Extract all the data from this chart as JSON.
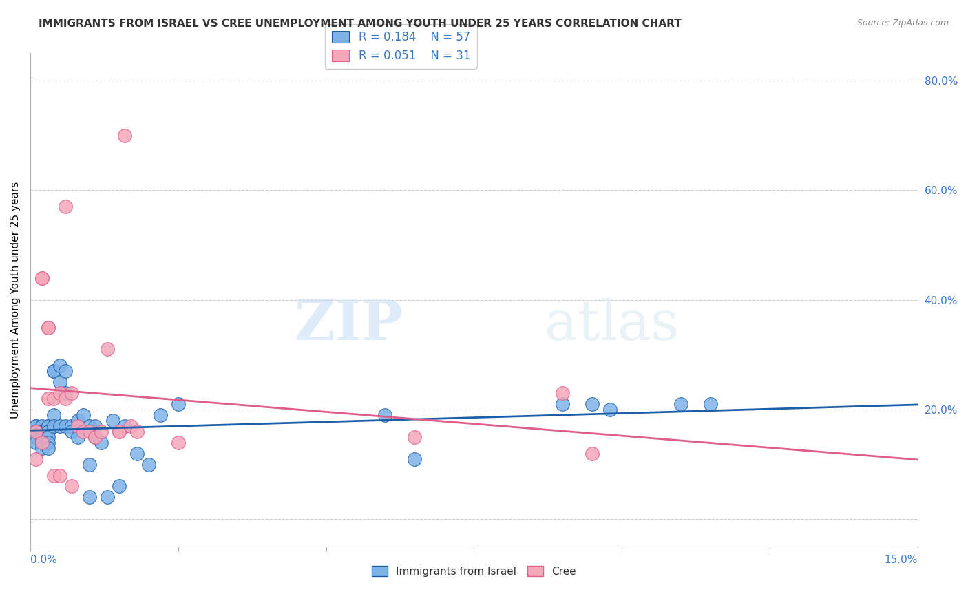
{
  "title": "IMMIGRANTS FROM ISRAEL VS CREE UNEMPLOYMENT AMONG YOUTH UNDER 25 YEARS CORRELATION CHART",
  "source": "Source: ZipAtlas.com",
  "ylabel": "Unemployment Among Youth under 25 years",
  "xlim": [
    0.0,
    0.15
  ],
  "ylim": [
    -0.05,
    0.85
  ],
  "yticks_right": [
    0.0,
    0.2,
    0.4,
    0.6,
    0.8
  ],
  "ytick_right_labels": [
    "",
    "20.0%",
    "40.0%",
    "60.0%",
    "80.0%"
  ],
  "legend_r1": "0.184",
  "legend_n1": "57",
  "legend_r2": "0.051",
  "legend_n2": "31",
  "color_blue": "#7EB3E8",
  "color_pink": "#F4A7B9",
  "color_blue_line": "#1B5FA8",
  "color_pink_line": "#E05C8A",
  "color_blue_text": "#3A78C4",
  "color_grid": "#CCCCCC",
  "watermark_zip": "ZIP",
  "watermark_atlas": "atlas",
  "blue_scatter_x": [
    0.001,
    0.001,
    0.001,
    0.001,
    0.001,
    0.001,
    0.002,
    0.002,
    0.002,
    0.002,
    0.002,
    0.002,
    0.002,
    0.002,
    0.003,
    0.003,
    0.003,
    0.003,
    0.003,
    0.003,
    0.003,
    0.004,
    0.004,
    0.004,
    0.004,
    0.005,
    0.005,
    0.005,
    0.006,
    0.006,
    0.006,
    0.007,
    0.007,
    0.008,
    0.008,
    0.009,
    0.01,
    0.01,
    0.01,
    0.011,
    0.011,
    0.012,
    0.013,
    0.014,
    0.015,
    0.016,
    0.018,
    0.02,
    0.022,
    0.025,
    0.06,
    0.065,
    0.09,
    0.095,
    0.098,
    0.11,
    0.115
  ],
  "blue_scatter_y": [
    0.16,
    0.17,
    0.17,
    0.16,
    0.15,
    0.14,
    0.17,
    0.16,
    0.16,
    0.15,
    0.15,
    0.14,
    0.14,
    0.13,
    0.17,
    0.17,
    0.16,
    0.16,
    0.15,
    0.14,
    0.13,
    0.27,
    0.27,
    0.19,
    0.17,
    0.28,
    0.25,
    0.17,
    0.27,
    0.23,
    0.17,
    0.17,
    0.16,
    0.18,
    0.15,
    0.19,
    0.17,
    0.1,
    0.04,
    0.17,
    0.15,
    0.14,
    0.04,
    0.18,
    0.06,
    0.17,
    0.12,
    0.1,
    0.19,
    0.21,
    0.19,
    0.11,
    0.21,
    0.21,
    0.2,
    0.21,
    0.21
  ],
  "pink_scatter_x": [
    0.001,
    0.001,
    0.002,
    0.002,
    0.002,
    0.003,
    0.003,
    0.003,
    0.004,
    0.004,
    0.005,
    0.005,
    0.006,
    0.006,
    0.007,
    0.007,
    0.008,
    0.009,
    0.01,
    0.011,
    0.012,
    0.013,
    0.015,
    0.015,
    0.016,
    0.017,
    0.018,
    0.025,
    0.065,
    0.09,
    0.095
  ],
  "pink_scatter_y": [
    0.16,
    0.11,
    0.44,
    0.44,
    0.14,
    0.35,
    0.35,
    0.22,
    0.22,
    0.08,
    0.23,
    0.08,
    0.57,
    0.22,
    0.23,
    0.06,
    0.17,
    0.16,
    0.16,
    0.15,
    0.16,
    0.31,
    0.16,
    0.16,
    0.7,
    0.17,
    0.16,
    0.14,
    0.15,
    0.23,
    0.12
  ]
}
